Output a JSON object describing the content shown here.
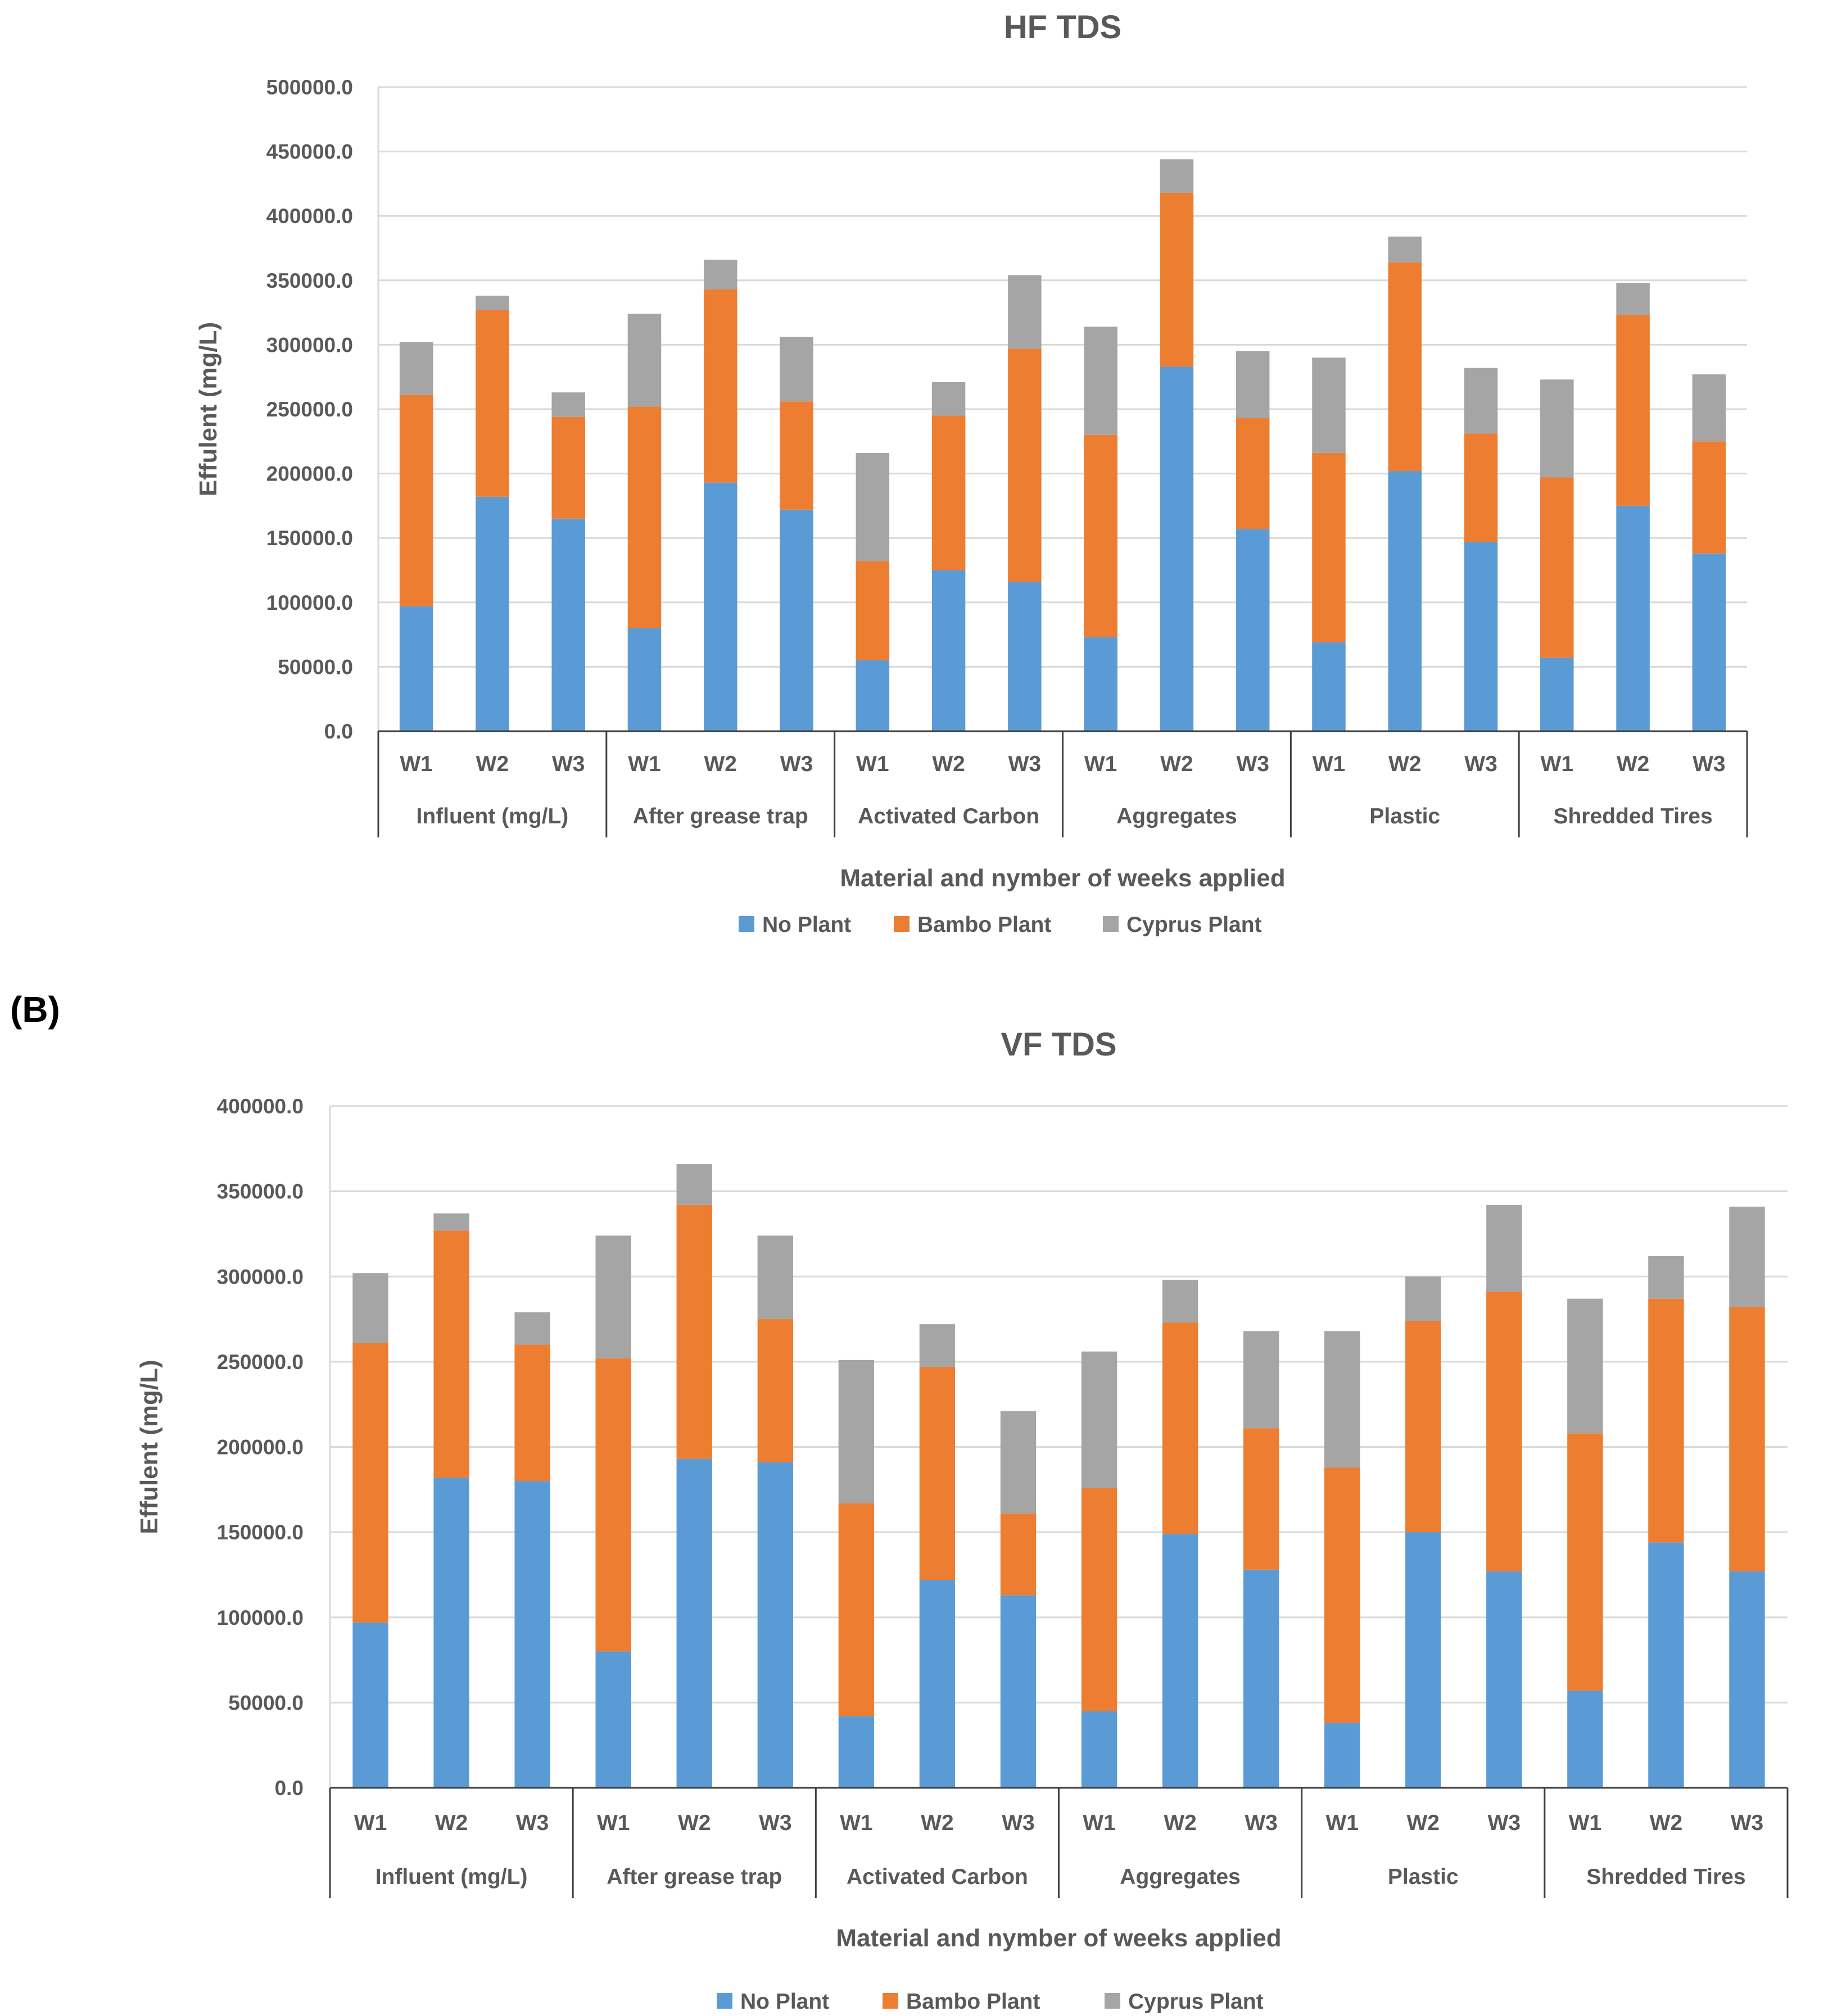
{
  "panel_label": "(B)",
  "chart_data": [
    {
      "type": "bar",
      "stacked": true,
      "title": "HF TDS",
      "xlabel": "Material and nymber of weeks applied",
      "ylabel": "Effulent (mg/L)",
      "ylim": [
        0,
        500000
      ],
      "yticks": [
        "0.0",
        "50000.0",
        "100000.0",
        "150000.0",
        "200000.0",
        "250000.0",
        "300000.0",
        "350000.0",
        "400000.0",
        "450000.0",
        "500000.0"
      ],
      "grid": "horizontal",
      "legend_position": "bottom",
      "groups": [
        "Influent (mg/L)",
        "After grease trap",
        "Activated Carbon",
        "Aggregates",
        "Plastic",
        "Shredded Tires"
      ],
      "categories": [
        "W1",
        "W2",
        "W3",
        "W1",
        "W2",
        "W3",
        "W1",
        "W2",
        "W3",
        "W1",
        "W2",
        "W3",
        "W1",
        "W2",
        "W3",
        "W1",
        "W2",
        "W3"
      ],
      "series": [
        {
          "name": "No Plant",
          "color": "#5b9bd5",
          "values": [
            97000,
            182000,
            165000,
            80000,
            193000,
            172000,
            55000,
            125000,
            116000,
            73000,
            283000,
            157000,
            69000,
            202000,
            147000,
            57000,
            175000,
            138000
          ]
        },
        {
          "name": "Bambo Plant",
          "color": "#ed7d31",
          "values": [
            164000,
            145000,
            79000,
            172000,
            150000,
            84000,
            77000,
            120000,
            181000,
            157000,
            135000,
            86000,
            147000,
            162000,
            84000,
            140000,
            148000,
            87000
          ]
        },
        {
          "name": "Cyprus Plant",
          "color": "#a5a5a5",
          "values": [
            41000,
            11000,
            19000,
            72000,
            23000,
            50000,
            84000,
            26000,
            57000,
            84000,
            26000,
            52000,
            74000,
            20000,
            51000,
            76000,
            25000,
            52000
          ]
        }
      ]
    },
    {
      "type": "bar",
      "stacked": true,
      "title": "VF TDS",
      "xlabel": "Material and nymber of weeks applied",
      "ylabel": "Effulent (mg/L)",
      "ylim": [
        0,
        400000
      ],
      "yticks": [
        "0.0",
        "50000.0",
        "100000.0",
        "150000.0",
        "200000.0",
        "250000.0",
        "300000.0",
        "350000.0",
        "400000.0"
      ],
      "grid": "horizontal",
      "legend_position": "bottom",
      "groups": [
        "Influent (mg/L)",
        "After grease trap",
        "Activated Carbon",
        "Aggregates",
        "Plastic",
        "Shredded Tires"
      ],
      "categories": [
        "W1",
        "W2",
        "W3",
        "W1",
        "W2",
        "W3",
        "W1",
        "W2",
        "W3",
        "W1",
        "W2",
        "W3",
        "W1",
        "W2",
        "W3",
        "W1",
        "W2",
        "W3"
      ],
      "series": [
        {
          "name": "No Plant",
          "color": "#5b9bd5",
          "values": [
            97000,
            182000,
            180000,
            80000,
            193000,
            191000,
            42000,
            122000,
            113000,
            45000,
            149000,
            128000,
            38000,
            150000,
            127000,
            57000,
            144000,
            127000
          ]
        },
        {
          "name": "Bambo Plant",
          "color": "#ed7d31",
          "values": [
            164000,
            145000,
            80000,
            172000,
            149000,
            84000,
            125000,
            125000,
            48000,
            131000,
            124000,
            83000,
            150000,
            124000,
            164000,
            151000,
            143000,
            155000
          ]
        },
        {
          "name": "Cyprus Plant",
          "color": "#a5a5a5",
          "values": [
            41000,
            10000,
            19000,
            72000,
            24000,
            49000,
            84000,
            25000,
            60000,
            80000,
            25000,
            57000,
            80000,
            26000,
            51000,
            79000,
            25000,
            59000
          ]
        }
      ]
    }
  ]
}
